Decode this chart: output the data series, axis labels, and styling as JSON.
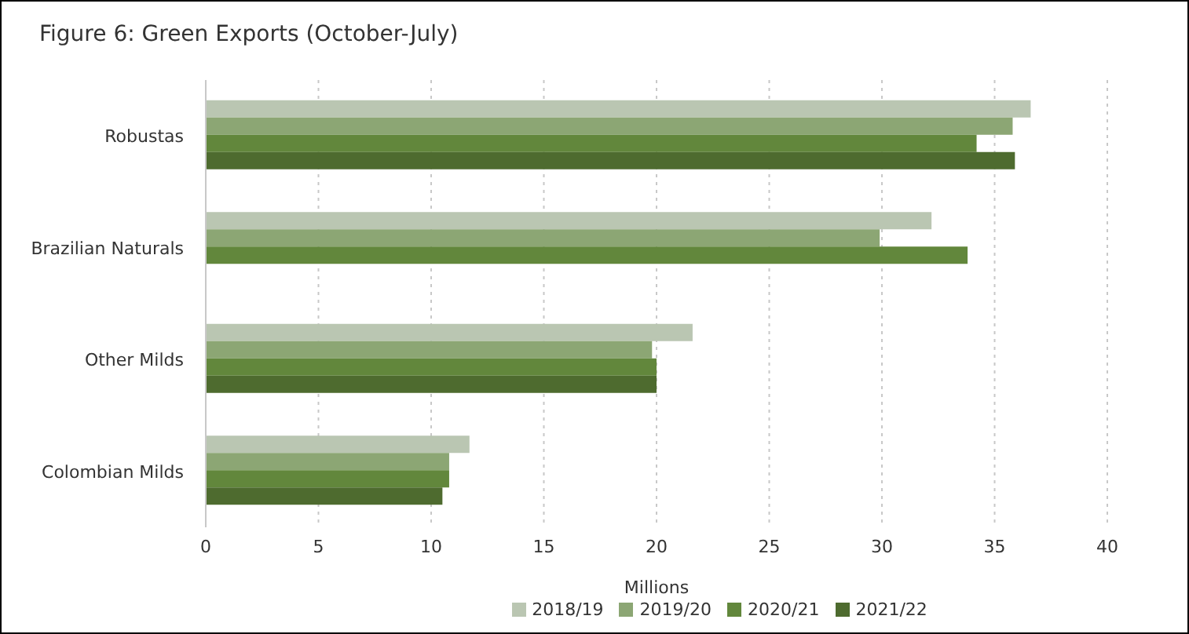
{
  "chart_data": {
    "type": "bar",
    "orientation": "horizontal",
    "title": "Figure 6: Green Exports (October-July)",
    "xlabel": "Millions",
    "categories": [
      "Robustas",
      "Brazilian Naturals",
      "Other Milds",
      "Colombian Milds"
    ],
    "series": [
      {
        "name": "2018/19",
        "color": "#bac6b2",
        "values": [
          36.6,
          32.2,
          21.6,
          11.7
        ]
      },
      {
        "name": "2019/20",
        "color": "#8ca674",
        "values": [
          35.8,
          29.9,
          19.8,
          10.8
        ]
      },
      {
        "name": "2020/21",
        "color": "#62873c",
        "values": [
          34.2,
          33.8,
          20.0,
          10.8
        ]
      },
      {
        "name": "2021/22",
        "color": "#4e6b2f",
        "values": [
          35.9,
          null,
          20.0,
          10.5
        ]
      }
    ],
    "xlim": [
      0,
      40
    ],
    "xticks": [
      0,
      5,
      10,
      15,
      20,
      25,
      30,
      35,
      40
    ],
    "grid": "x",
    "legend": "bottom"
  }
}
